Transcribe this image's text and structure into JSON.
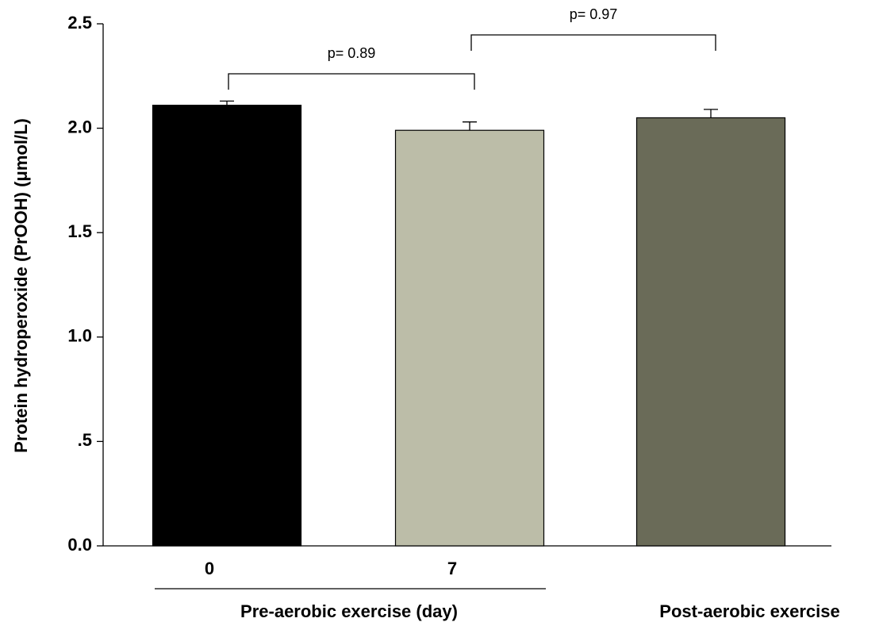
{
  "chart_data": {
    "type": "bar",
    "y_label": "Protein hydroperoxide (PrOOH) (μmol/L)",
    "categories": [
      "0",
      "7",
      null
    ],
    "values": [
      2.11,
      1.99,
      2.05
    ],
    "errors": [
      0.02,
      0.04,
      0.04
    ],
    "colors": [
      "#000000",
      "#bcbda8",
      "#6a6b58"
    ],
    "group_labels": [
      "Pre-aerobic exercise  (day)",
      "Post-aerobic exercise"
    ],
    "annotations": [
      "p= 0.89",
      "p= 0.97"
    ],
    "ylim": [
      0,
      2.5
    ],
    "yticks": [
      {
        "value": 0,
        "label": "0.0"
      },
      {
        "value": 0.5,
        "label": ".5"
      },
      {
        "value": 1,
        "label": "1.0"
      },
      {
        "value": 1.5,
        "label": "1.5"
      },
      {
        "value": 2,
        "label": "2.0"
      },
      {
        "value": 2.5,
        "label": "2.5"
      }
    ]
  }
}
